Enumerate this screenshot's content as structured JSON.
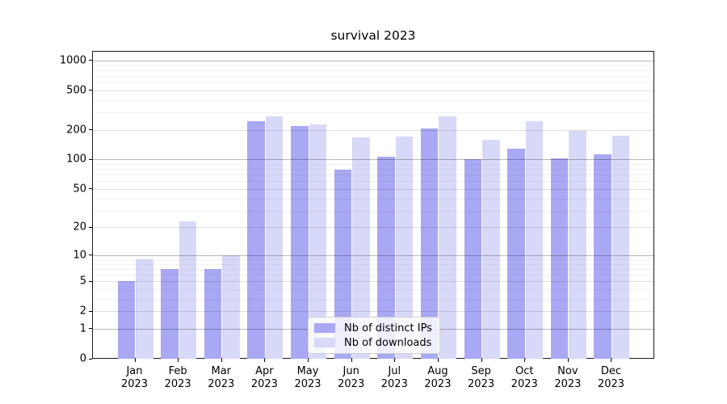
{
  "chart_data": {
    "type": "bar",
    "title": "survival 2023",
    "yscale": "log1p",
    "grid": true,
    "legend_position": "lower center",
    "categories": [
      "Jan",
      "Feb",
      "Mar",
      "Apr",
      "May",
      "Jun",
      "Jul",
      "Aug",
      "Sep",
      "Oct",
      "Nov",
      "Dec"
    ],
    "year_label": "2023",
    "series": [
      {
        "key": "ips",
        "name": "Nb of distinct IPs",
        "color": "#a8a8f4",
        "values": [
          5,
          7,
          7,
          245,
          220,
          79,
          106,
          208,
          100,
          130,
          103,
          112
        ]
      },
      {
        "key": "downloads",
        "name": "Nb of downloads",
        "color": "#d8d8f8",
        "values": [
          9,
          23,
          10,
          275,
          228,
          168,
          170,
          272,
          160,
          245,
          195,
          174
        ]
      }
    ],
    "ylim": [
      0,
      1250
    ],
    "yticks": [
      0,
      1,
      2,
      5,
      10,
      20,
      50,
      100,
      200,
      500,
      1000
    ],
    "ytick_labels": [
      "0",
      "1",
      "2",
      "5",
      "10",
      "20",
      "50",
      "100",
      "200",
      "500",
      "1000"
    ],
    "ytick_decades": [
      1,
      10,
      100,
      1000
    ],
    "ytick_minor_subs": [
      3,
      4,
      6,
      7,
      8,
      9
    ],
    "axis_color": "#1a1a1a"
  }
}
